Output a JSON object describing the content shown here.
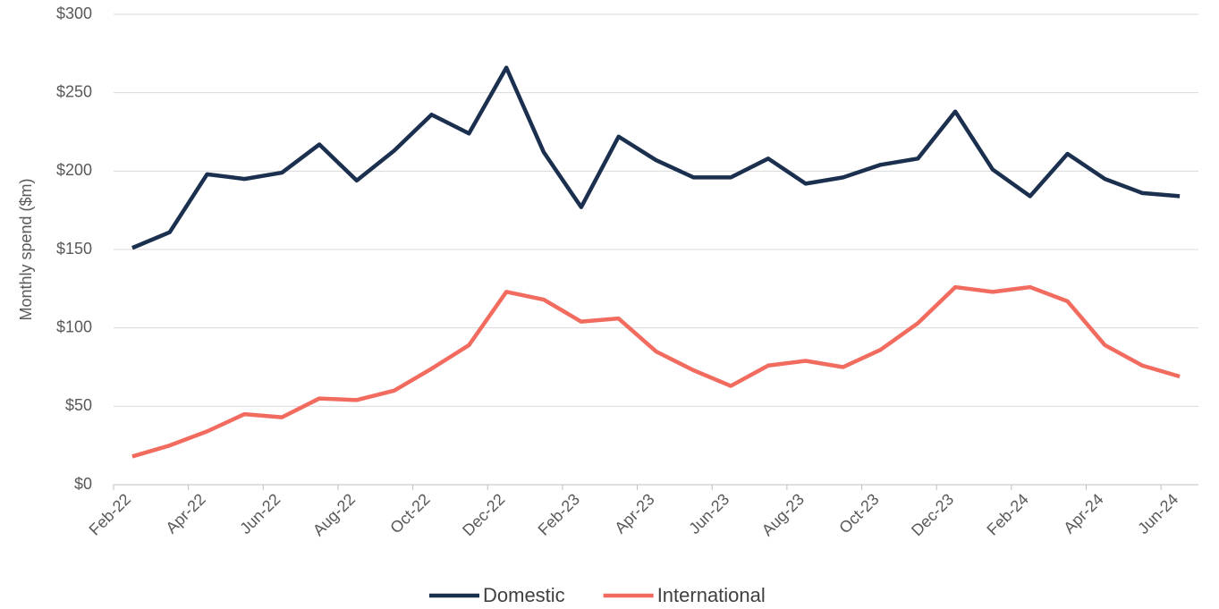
{
  "chart_data": {
    "type": "line",
    "y_axis_label": "Monthly spend ($m)",
    "categories": [
      "Feb-22",
      null,
      "Apr-22",
      null,
      "Jun-22",
      null,
      "Aug-22",
      null,
      "Oct-22",
      null,
      "Dec-22",
      null,
      "Feb-23",
      null,
      "Apr-23",
      null,
      "Jun-23",
      null,
      "Aug-23",
      null,
      "Oct-23",
      null,
      "Dec-23",
      null,
      "Feb-24",
      null,
      "Apr-24",
      null,
      "Jun-24"
    ],
    "series": [
      {
        "name": "Domestic",
        "color": "#1b2f4e",
        "values": [
          151,
          161,
          198,
          195,
          199,
          217,
          194,
          213,
          236,
          224,
          266,
          212,
          177,
          222,
          207,
          196,
          196,
          208,
          192,
          196,
          204,
          208,
          238,
          201,
          184,
          211,
          195,
          186,
          184
        ]
      },
      {
        "name": "International",
        "color": "#f26b5f",
        "values": [
          18,
          25,
          34,
          45,
          43,
          55,
          54,
          60,
          74,
          89,
          123,
          118,
          104,
          106,
          85,
          73,
          63,
          76,
          79,
          75,
          86,
          103,
          126,
          123,
          126,
          117,
          89,
          76,
          69
        ]
      }
    ],
    "ylim": [
      0,
      300
    ],
    "yticks": [
      {
        "value": 0,
        "label": "$0"
      },
      {
        "value": 50,
        "label": "$50"
      },
      {
        "value": 100,
        "label": "$100"
      },
      {
        "value": 150,
        "label": "$150"
      },
      {
        "value": 200,
        "label": "$200"
      },
      {
        "value": 250,
        "label": "$250"
      },
      {
        "value": 300,
        "label": "$300"
      }
    ],
    "grid": true,
    "legend": "bottom"
  }
}
